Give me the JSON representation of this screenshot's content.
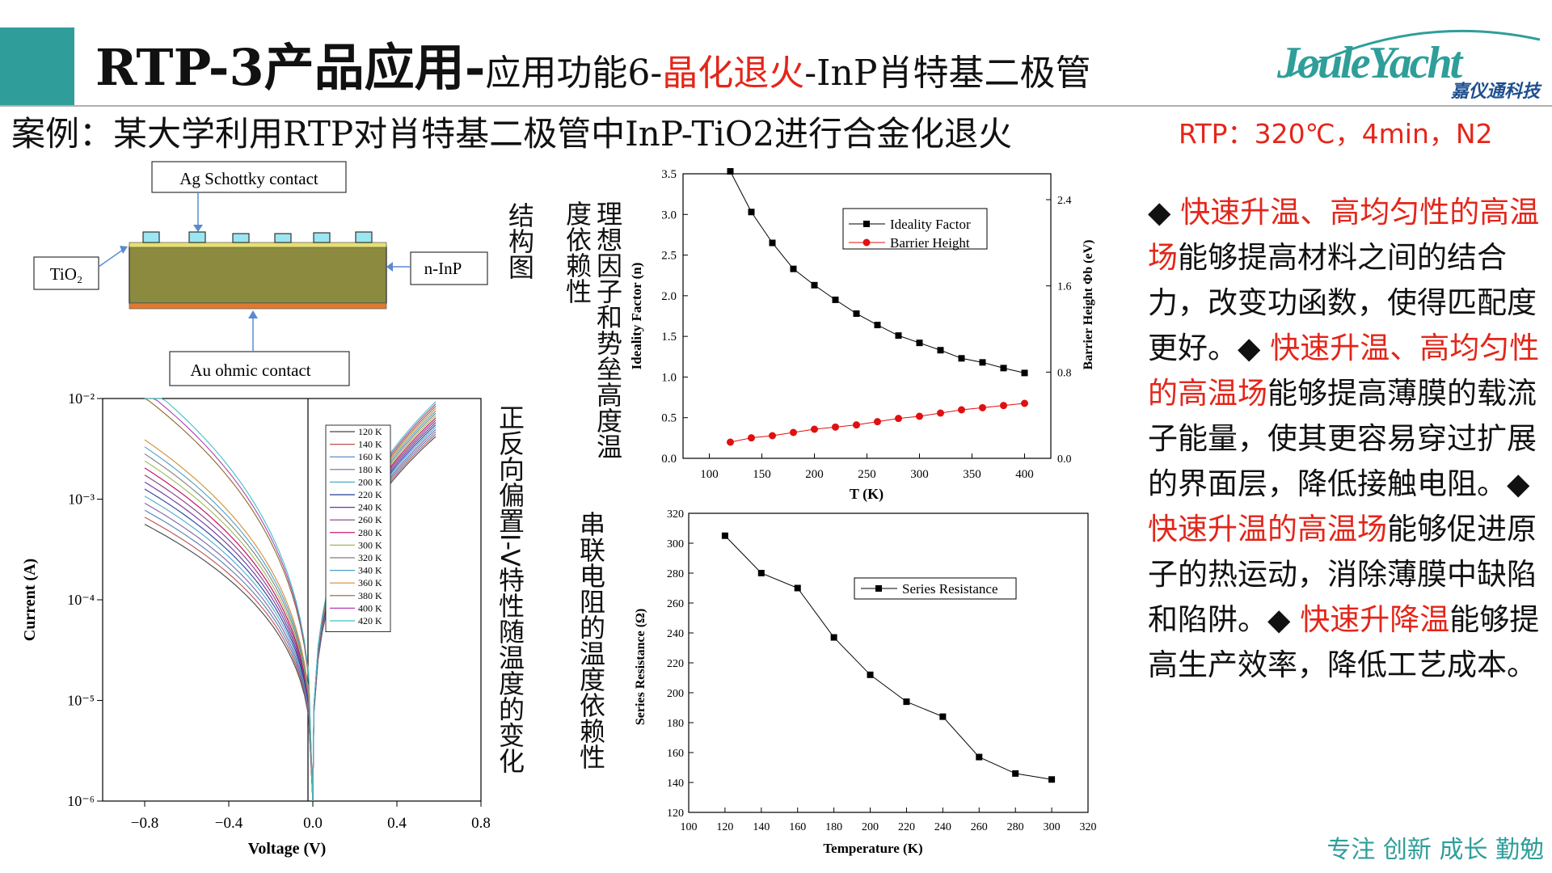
{
  "header": {
    "title_main": "RTP-3产品应用",
    "title_dash": "-",
    "title_sub1": "应用功能6-",
    "title_red": "晶化退火",
    "title_sub2": "-InP肖特基二极管",
    "logo_text": "JouleYacht",
    "logo_sub": "嘉仪通科技"
  },
  "case_line": "案例：某大学利用RTP对肖特基二极管中InP-TiO2进行合金化退火",
  "rtp_conditions": "RTP：320℃，4min，N2",
  "structure": {
    "caption": "结构图",
    "labels": {
      "schottky": "Ag Schottky contact",
      "tio2": "TiO₂",
      "ninp": "n-InP",
      "ohmic": "Au ohmic contact"
    }
  },
  "captions": {
    "iv": "正反向偏置I-V特性随温度的变化",
    "ideality": "理想因子和势垒高度温度依赖性",
    "series": "串联电阻的温度依赖性"
  },
  "iv_chart": {
    "type": "line",
    "xlabel": "Voltage (V)",
    "ylabel": "Current (A)",
    "x_ticks": [
      "−0.8",
      "−0.4",
      "0.0",
      "0.4",
      "0.8"
    ],
    "y_ticks": [
      "10⁻²",
      "10⁻³",
      "10⁻⁴",
      "10⁻⁵",
      "10⁻⁶"
    ],
    "legend": [
      "120 K",
      "140 K",
      "160 K",
      "180 K",
      "200 K",
      "220 K",
      "240 K",
      "260 K",
      "280 K",
      "300 K",
      "320 K",
      "340 K",
      "360 K",
      "380 K",
      "400 K",
      "420 K"
    ],
    "colors": [
      "#444444",
      "#c0504d",
      "#4f81bd",
      "#8064a2",
      "#4bacc6",
      "#1f3f99",
      "#7030a0",
      "#7f3f7f",
      "#c00060",
      "#9bbb59",
      "#7f7f7f",
      "#4ba0c6",
      "#d28d35",
      "#8a6a2a",
      "#b040b0",
      "#40c0c0"
    ]
  },
  "chart_data": [
    {
      "type": "line",
      "xlabel": "T (K)",
      "ylabel": "Ideality Factor (n)",
      "ylabel_right": "Barrier Height Φb (eV)",
      "x": [
        120,
        140,
        160,
        180,
        200,
        220,
        240,
        260,
        280,
        300,
        320,
        340,
        360,
        380,
        400
      ],
      "xlim": [
        75,
        425
      ],
      "ylim": [
        0,
        3.5
      ],
      "ylim_right": [
        0,
        2.64
      ],
      "x_ticks": [
        "100",
        "150",
        "200",
        "250",
        "300",
        "350",
        "400"
      ],
      "y_ticks": [
        "0.0",
        "0.5",
        "1.0",
        "1.5",
        "2.0",
        "2.5",
        "3.0",
        "3.5"
      ],
      "y_ticks_right": [
        "0.0",
        "0.8",
        "1.6",
        "2.4"
      ],
      "series": [
        {
          "name": "Ideality Factor",
          "axis": "left",
          "color": "#000000",
          "values": [
            3.53,
            3.03,
            2.65,
            2.33,
            2.13,
            1.95,
            1.78,
            1.64,
            1.51,
            1.42,
            1.33,
            1.23,
            1.18,
            1.11,
            1.05
          ]
        },
        {
          "name": "Barrier Height",
          "axis": "right",
          "color": "#e01010",
          "values": [
            0.15,
            0.19,
            0.21,
            0.24,
            0.27,
            0.29,
            0.31,
            0.34,
            0.37,
            0.39,
            0.42,
            0.45,
            0.47,
            0.49,
            0.51
          ]
        }
      ]
    },
    {
      "type": "line",
      "xlabel": "Temperature (K)",
      "ylabel": "Series Resistance (Ω)",
      "x": [
        120,
        140,
        160,
        180,
        200,
        220,
        240,
        260,
        280,
        300
      ],
      "xlim": [
        100,
        320
      ],
      "ylim": [
        120,
        320
      ],
      "x_ticks": [
        "100",
        "120",
        "140",
        "160",
        "180",
        "200",
        "220",
        "240",
        "260",
        "280",
        "300",
        "320"
      ],
      "y_ticks": [
        "120",
        "140",
        "160",
        "180",
        "200",
        "220",
        "240",
        "260",
        "280",
        "300",
        "320"
      ],
      "series": [
        {
          "name": "Series Resistance",
          "color": "#000000",
          "values": [
            305,
            280,
            270,
            237,
            212,
            194,
            184,
            157,
            146,
            142
          ]
        }
      ]
    }
  ],
  "right_text": {
    "p1_bullet": "◆ ",
    "p1_red": "快速升温、高均匀性的高温场",
    "p1_text": "能够提高材料之间的结合力，改变功函数，使得匹配度更好。",
    "p2_bullet": "◆ ",
    "p2_red": "快速升温、高均匀性的高温场",
    "p2_text": "能够提高薄膜的载流子能量，使其更容易穿过扩展的界面层，降低接触电阻。",
    "p3_bullet": "◆ ",
    "p3_red": "快速升温的高温场",
    "p3_text": "能够促进原子的热运动，消除薄膜中缺陷和陷阱。",
    "p4_bullet": "◆ ",
    "p4_red": "快速升降温",
    "p4_text": "能够提高生产效率，降低工艺成本。"
  },
  "footer": "专注 创新 成长 勤勉"
}
